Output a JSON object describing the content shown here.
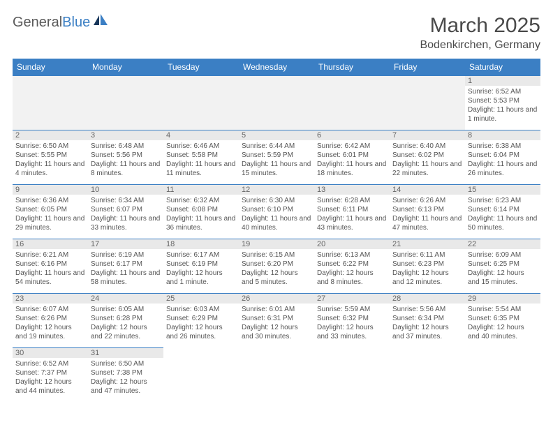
{
  "logo": {
    "text1": "General",
    "text2": "Blue"
  },
  "title": "March 2025",
  "location": "Bodenkirchen, Germany",
  "colors": {
    "header_bg": "#3b7fc4",
    "header_text": "#ffffff",
    "daynum_bg": "#e9e9e9",
    "border": "#3b7fc4",
    "text": "#555555"
  },
  "dayHeaders": [
    "Sunday",
    "Monday",
    "Tuesday",
    "Wednesday",
    "Thursday",
    "Friday",
    "Saturday"
  ],
  "weeks": [
    [
      null,
      null,
      null,
      null,
      null,
      null,
      {
        "n": "1",
        "sr": "Sunrise: 6:52 AM",
        "ss": "Sunset: 5:53 PM",
        "dl": "Daylight: 11 hours and 1 minute."
      }
    ],
    [
      {
        "n": "2",
        "sr": "Sunrise: 6:50 AM",
        "ss": "Sunset: 5:55 PM",
        "dl": "Daylight: 11 hours and 4 minutes."
      },
      {
        "n": "3",
        "sr": "Sunrise: 6:48 AM",
        "ss": "Sunset: 5:56 PM",
        "dl": "Daylight: 11 hours and 8 minutes."
      },
      {
        "n": "4",
        "sr": "Sunrise: 6:46 AM",
        "ss": "Sunset: 5:58 PM",
        "dl": "Daylight: 11 hours and 11 minutes."
      },
      {
        "n": "5",
        "sr": "Sunrise: 6:44 AM",
        "ss": "Sunset: 5:59 PM",
        "dl": "Daylight: 11 hours and 15 minutes."
      },
      {
        "n": "6",
        "sr": "Sunrise: 6:42 AM",
        "ss": "Sunset: 6:01 PM",
        "dl": "Daylight: 11 hours and 18 minutes."
      },
      {
        "n": "7",
        "sr": "Sunrise: 6:40 AM",
        "ss": "Sunset: 6:02 PM",
        "dl": "Daylight: 11 hours and 22 minutes."
      },
      {
        "n": "8",
        "sr": "Sunrise: 6:38 AM",
        "ss": "Sunset: 6:04 PM",
        "dl": "Daylight: 11 hours and 26 minutes."
      }
    ],
    [
      {
        "n": "9",
        "sr": "Sunrise: 6:36 AM",
        "ss": "Sunset: 6:05 PM",
        "dl": "Daylight: 11 hours and 29 minutes."
      },
      {
        "n": "10",
        "sr": "Sunrise: 6:34 AM",
        "ss": "Sunset: 6:07 PM",
        "dl": "Daylight: 11 hours and 33 minutes."
      },
      {
        "n": "11",
        "sr": "Sunrise: 6:32 AM",
        "ss": "Sunset: 6:08 PM",
        "dl": "Daylight: 11 hours and 36 minutes."
      },
      {
        "n": "12",
        "sr": "Sunrise: 6:30 AM",
        "ss": "Sunset: 6:10 PM",
        "dl": "Daylight: 11 hours and 40 minutes."
      },
      {
        "n": "13",
        "sr": "Sunrise: 6:28 AM",
        "ss": "Sunset: 6:11 PM",
        "dl": "Daylight: 11 hours and 43 minutes."
      },
      {
        "n": "14",
        "sr": "Sunrise: 6:26 AM",
        "ss": "Sunset: 6:13 PM",
        "dl": "Daylight: 11 hours and 47 minutes."
      },
      {
        "n": "15",
        "sr": "Sunrise: 6:23 AM",
        "ss": "Sunset: 6:14 PM",
        "dl": "Daylight: 11 hours and 50 minutes."
      }
    ],
    [
      {
        "n": "16",
        "sr": "Sunrise: 6:21 AM",
        "ss": "Sunset: 6:16 PM",
        "dl": "Daylight: 11 hours and 54 minutes."
      },
      {
        "n": "17",
        "sr": "Sunrise: 6:19 AM",
        "ss": "Sunset: 6:17 PM",
        "dl": "Daylight: 11 hours and 58 minutes."
      },
      {
        "n": "18",
        "sr": "Sunrise: 6:17 AM",
        "ss": "Sunset: 6:19 PM",
        "dl": "Daylight: 12 hours and 1 minute."
      },
      {
        "n": "19",
        "sr": "Sunrise: 6:15 AM",
        "ss": "Sunset: 6:20 PM",
        "dl": "Daylight: 12 hours and 5 minutes."
      },
      {
        "n": "20",
        "sr": "Sunrise: 6:13 AM",
        "ss": "Sunset: 6:22 PM",
        "dl": "Daylight: 12 hours and 8 minutes."
      },
      {
        "n": "21",
        "sr": "Sunrise: 6:11 AM",
        "ss": "Sunset: 6:23 PM",
        "dl": "Daylight: 12 hours and 12 minutes."
      },
      {
        "n": "22",
        "sr": "Sunrise: 6:09 AM",
        "ss": "Sunset: 6:25 PM",
        "dl": "Daylight: 12 hours and 15 minutes."
      }
    ],
    [
      {
        "n": "23",
        "sr": "Sunrise: 6:07 AM",
        "ss": "Sunset: 6:26 PM",
        "dl": "Daylight: 12 hours and 19 minutes."
      },
      {
        "n": "24",
        "sr": "Sunrise: 6:05 AM",
        "ss": "Sunset: 6:28 PM",
        "dl": "Daylight: 12 hours and 22 minutes."
      },
      {
        "n": "25",
        "sr": "Sunrise: 6:03 AM",
        "ss": "Sunset: 6:29 PM",
        "dl": "Daylight: 12 hours and 26 minutes."
      },
      {
        "n": "26",
        "sr": "Sunrise: 6:01 AM",
        "ss": "Sunset: 6:31 PM",
        "dl": "Daylight: 12 hours and 30 minutes."
      },
      {
        "n": "27",
        "sr": "Sunrise: 5:59 AM",
        "ss": "Sunset: 6:32 PM",
        "dl": "Daylight: 12 hours and 33 minutes."
      },
      {
        "n": "28",
        "sr": "Sunrise: 5:56 AM",
        "ss": "Sunset: 6:34 PM",
        "dl": "Daylight: 12 hours and 37 minutes."
      },
      {
        "n": "29",
        "sr": "Sunrise: 5:54 AM",
        "ss": "Sunset: 6:35 PM",
        "dl": "Daylight: 12 hours and 40 minutes."
      }
    ],
    [
      {
        "n": "30",
        "sr": "Sunrise: 6:52 AM",
        "ss": "Sunset: 7:37 PM",
        "dl": "Daylight: 12 hours and 44 minutes."
      },
      {
        "n": "31",
        "sr": "Sunrise: 6:50 AM",
        "ss": "Sunset: 7:38 PM",
        "dl": "Daylight: 12 hours and 47 minutes."
      },
      null,
      null,
      null,
      null,
      null
    ]
  ]
}
